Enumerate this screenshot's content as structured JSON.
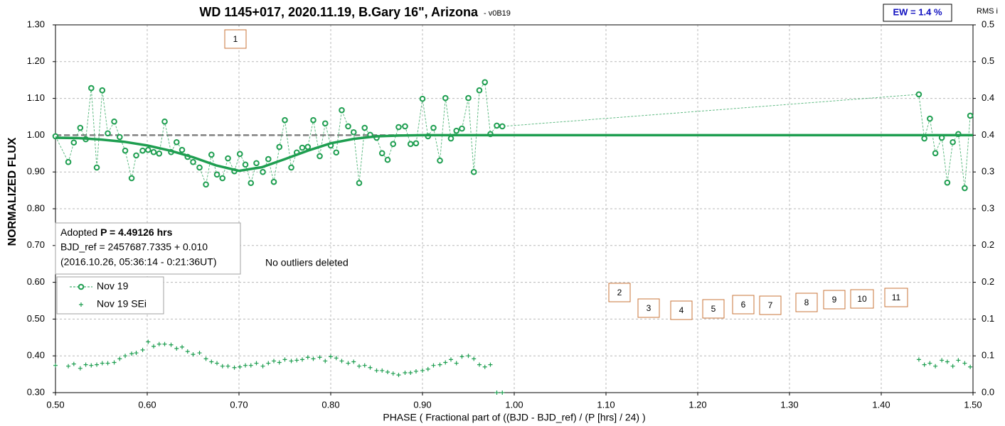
{
  "chart_data": {
    "type": "line",
    "title": "WD 1145+017, 2020.11.19, B.Gary 16\", Arizona",
    "subtitle": "-  v0B19",
    "badge": "EW = 1.4 %",
    "y2_label": "RMS i",
    "x_label": "PHASE ( Fractional part of ((BJD - BJD_ref) / (P [hrs] / 24) )",
    "y_label": "NORMALIZED FLUX",
    "info": {
      "prefix": "Adopted ",
      "period": "P = 4.49126 hrs",
      "line2": "BJD_ref = 2457687.7335 + 0.010",
      "line3": "(2016.10.26, 05:36:14 - 0:21:36UT)"
    },
    "note": "No outliers deleted",
    "annotations": [
      "1",
      "2",
      "3",
      "4",
      "5",
      "6",
      "7",
      "8",
      "9",
      "10",
      "11"
    ],
    "xlim": [
      0.5,
      1.5
    ],
    "xticks": [
      {
        "value": 0.5,
        "label": "0.50"
      },
      {
        "value": 0.6,
        "label": "0.60"
      },
      {
        "value": 0.7,
        "label": "0.70"
      },
      {
        "value": 0.8,
        "label": "0.80"
      },
      {
        "value": 0.9,
        "label": "0.90"
      },
      {
        "value": 1.0,
        "label": "1.00"
      },
      {
        "value": 1.1,
        "label": "1.10"
      },
      {
        "value": 1.2,
        "label": "1.20"
      },
      {
        "value": 1.3,
        "label": "1.30"
      },
      {
        "value": 1.4,
        "label": "1.40"
      },
      {
        "value": 1.5,
        "label": "1.50"
      }
    ],
    "ylim": [
      0.3,
      1.3
    ],
    "yticks": [
      {
        "value": 0.3,
        "label": "0.30"
      },
      {
        "value": 0.4,
        "label": "0.40"
      },
      {
        "value": 0.5,
        "label": "0.50"
      },
      {
        "value": 0.6,
        "label": "0.60"
      },
      {
        "value": 0.7,
        "label": "0.70"
      },
      {
        "value": 0.8,
        "label": "0.80"
      },
      {
        "value": 0.9,
        "label": "0.90"
      },
      {
        "value": 1.0,
        "label": "1.00"
      },
      {
        "value": 1.1,
        "label": "1.10"
      },
      {
        "value": 1.2,
        "label": "1.20"
      },
      {
        "value": 1.3,
        "label": "1.30"
      }
    ],
    "y2lim": [
      0,
      0.5
    ],
    "y2ticks": [
      {
        "value": 0,
        "label": "0.0"
      },
      {
        "value": 0.05,
        "label": "0.1"
      },
      {
        "value": 0.1,
        "label": "0.1"
      },
      {
        "value": 0.15,
        "label": "0.2"
      },
      {
        "value": 0.2,
        "label": "0.2"
      },
      {
        "value": 0.25,
        "label": "0.3"
      },
      {
        "value": 0.3,
        "label": "0.3"
      },
      {
        "value": 0.35,
        "label": "0.4"
      },
      {
        "value": 0.4,
        "label": "0.4"
      },
      {
        "value": 0.45,
        "label": "0.5"
      },
      {
        "value": 0.5,
        "label": "0.5"
      }
    ],
    "grid": true,
    "reference_line": 1.0,
    "series": [
      {
        "name": "Nov 19",
        "color": "#1e9e50",
        "style": "line-markers",
        "x": [
          0.5,
          0.514,
          0.52,
          0.527,
          0.533,
          0.539,
          0.545,
          0.551,
          0.557,
          0.564,
          0.57,
          0.576,
          0.583,
          0.588,
          0.595,
          0.601,
          0.607,
          0.613,
          0.619,
          0.626,
          0.632,
          0.638,
          0.644,
          0.65,
          0.657,
          0.664,
          0.67,
          0.676,
          0.682,
          0.688,
          0.695,
          0.701,
          0.707,
          0.713,
          0.719,
          0.726,
          0.732,
          0.738,
          0.744,
          0.75,
          0.757,
          0.763,
          0.769,
          0.775,
          0.781,
          0.788,
          0.794,
          0.8,
          0.806,
          0.812,
          0.819,
          0.825,
          0.831,
          0.837,
          0.843,
          0.85,
          0.856,
          0.862,
          0.868,
          0.874,
          0.881,
          0.887,
          0.893,
          0.9,
          0.906,
          0.912,
          0.919,
          0.925,
          0.931,
          0.937,
          0.943,
          0.95,
          0.956,
          0.962,
          0.968,
          0.974,
          0.981,
          0.987,
          1.441,
          1.447,
          1.453,
          1.459,
          1.466,
          1.472,
          1.478,
          1.484,
          1.491,
          1.497
        ],
        "values": [
          0.997,
          0.927,
          0.98,
          1.02,
          0.989,
          1.128,
          0.912,
          1.122,
          1.005,
          1.037,
          0.995,
          0.958,
          0.883,
          0.945,
          0.958,
          0.96,
          0.954,
          0.95,
          1.037,
          0.954,
          0.981,
          0.96,
          0.941,
          0.927,
          0.912,
          0.866,
          0.947,
          0.893,
          0.883,
          0.937,
          0.902,
          0.949,
          0.92,
          0.87,
          0.924,
          0.9,
          0.935,
          0.873,
          0.968,
          1.041,
          0.912,
          0.953,
          0.966,
          0.968,
          1.041,
          0.943,
          1.032,
          0.972,
          0.953,
          1.068,
          1.024,
          1.008,
          0.87,
          1.02,
          1.001,
          0.993,
          0.951,
          0.933,
          0.976,
          1.022,
          1.024,
          0.976,
          0.978,
          1.099,
          0.997,
          1.02,
          0.931,
          1.101,
          0.991,
          1.012,
          1.018,
          1.101,
          0.9,
          1.122,
          1.144,
          1.003,
          1.026,
          1.024,
          1.111,
          0.991,
          1.045,
          0.951,
          0.993,
          0.871,
          0.981,
          1.003,
          0.856,
          1.053
        ]
      },
      {
        "name": "Nov 19 SEi",
        "color": "#1e9e50",
        "style": "markers",
        "axis": "y2",
        "x": [
          0.5,
          0.514,
          0.52,
          0.527,
          0.533,
          0.539,
          0.545,
          0.551,
          0.557,
          0.564,
          0.57,
          0.576,
          0.583,
          0.588,
          0.595,
          0.601,
          0.607,
          0.613,
          0.619,
          0.626,
          0.632,
          0.638,
          0.644,
          0.65,
          0.657,
          0.664,
          0.67,
          0.676,
          0.682,
          0.688,
          0.695,
          0.701,
          0.707,
          0.713,
          0.719,
          0.726,
          0.732,
          0.738,
          0.744,
          0.75,
          0.757,
          0.763,
          0.769,
          0.775,
          0.781,
          0.788,
          0.794,
          0.8,
          0.806,
          0.812,
          0.819,
          0.825,
          0.831,
          0.837,
          0.843,
          0.85,
          0.856,
          0.862,
          0.868,
          0.874,
          0.881,
          0.887,
          0.893,
          0.9,
          0.906,
          0.912,
          0.919,
          0.925,
          0.931,
          0.937,
          0.943,
          0.95,
          0.956,
          0.962,
          0.968,
          0.974,
          0.981,
          0.987,
          1.441,
          1.447,
          1.453,
          1.459,
          1.466,
          1.472,
          1.478,
          1.484,
          1.491,
          1.497
        ],
        "values": [
          0.037,
          0.036,
          0.039,
          0.033,
          0.038,
          0.037,
          0.038,
          0.04,
          0.04,
          0.041,
          0.046,
          0.05,
          0.053,
          0.054,
          0.058,
          0.069,
          0.063,
          0.066,
          0.066,
          0.065,
          0.06,
          0.062,
          0.056,
          0.052,
          0.054,
          0.046,
          0.042,
          0.04,
          0.036,
          0.036,
          0.034,
          0.035,
          0.037,
          0.037,
          0.04,
          0.036,
          0.04,
          0.043,
          0.041,
          0.045,
          0.043,
          0.044,
          0.045,
          0.048,
          0.046,
          0.048,
          0.043,
          0.049,
          0.047,
          0.043,
          0.04,
          0.042,
          0.036,
          0.037,
          0.034,
          0.03,
          0.03,
          0.028,
          0.026,
          0.024,
          0.027,
          0.027,
          0.029,
          0.03,
          0.032,
          0.037,
          0.038,
          0.041,
          0.045,
          0.04,
          0.049,
          0.05,
          0.046,
          0.038,
          0.035,
          0.038,
          0,
          0,
          0.045,
          0.038,
          0.04,
          0.036,
          0.044,
          0.042,
          0.036,
          0.044,
          0.04,
          0.035
        ]
      },
      {
        "color": "#1e9e50",
        "style": "line",
        "x": [
          0.5,
          0.525,
          0.55,
          0.575,
          0.6,
          0.625,
          0.65,
          0.675,
          0.7,
          0.725,
          0.75,
          0.775,
          0.8,
          0.825,
          0.85,
          0.875,
          0.9,
          1.5
        ],
        "values": [
          0.993,
          0.992,
          0.988,
          0.982,
          0.972,
          0.958,
          0.94,
          0.918,
          0.903,
          0.913,
          0.935,
          0.958,
          0.978,
          0.99,
          0.997,
          0.999,
          1.0,
          1.0
        ]
      }
    ]
  }
}
